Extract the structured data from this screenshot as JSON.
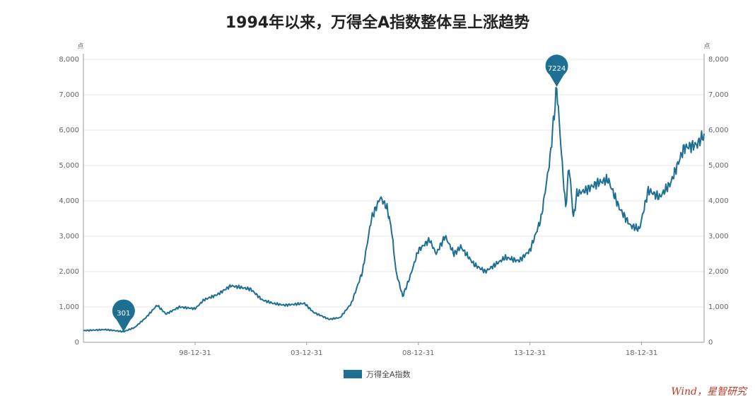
{
  "title": "1994年以来，万得全A指数整体呈上涨趋势",
  "source_note": "Wind，星智研究",
  "colors": {
    "line": "#1f6f93",
    "marker": "#1f6f93"
  },
  "chart_data": {
    "type": "line",
    "title": "1994年以来，万得全A指数整体呈上涨趋势",
    "y_unit": "点",
    "ylim": [
      0,
      8000
    ],
    "y_ticks": [
      0,
      1000,
      2000,
      3000,
      4000,
      5000,
      6000,
      7000,
      8000
    ],
    "y_tick_labels": [
      "0",
      "1,000",
      "2,000",
      "3,000",
      "4,000",
      "5,000",
      "6,000",
      "7,000",
      "8,000"
    ],
    "x_ticks": [
      "98-12-31",
      "03-12-31",
      "08-12-31",
      "13-12-31",
      "18-12-31"
    ],
    "grid": true,
    "legend_position": "bottom",
    "series": [
      {
        "name": "万得全A指数",
        "x": [
          1994.0,
          1995.0,
          1995.8,
          1996.3,
          1996.8,
          1997.3,
          1997.7,
          1998.3,
          1999.0,
          1999.4,
          2000.0,
          2000.6,
          2001.5,
          2002.0,
          2002.5,
          2003.0,
          2003.9,
          2004.3,
          2005.0,
          2005.5,
          2006.0,
          2006.5,
          2006.9,
          2007.3,
          2007.6,
          2007.8,
          2008.0,
          2008.3,
          2008.6,
          2009.0,
          2009.5,
          2009.8,
          2010.2,
          2010.6,
          2010.9,
          2011.5,
          2012.0,
          2012.9,
          2013.5,
          2014.0,
          2014.5,
          2014.9,
          2015.2,
          2015.45,
          2015.6,
          2015.75,
          2015.95,
          2016.1,
          2016.5,
          2017.0,
          2017.5,
          2018.0,
          2018.5,
          2018.9,
          2019.3,
          2019.8,
          2020.3,
          2020.9,
          2021.5,
          2021.8
        ],
        "values": [
          330,
          360,
          301,
          420,
          700,
          1050,
          800,
          1000,
          950,
          1200,
          1350,
          1600,
          1500,
          1200,
          1100,
          1050,
          1100,
          850,
          650,
          700,
          1100,
          2000,
          3500,
          4100,
          3800,
          3200,
          2000,
          1300,
          1800,
          2600,
          2900,
          2500,
          3000,
          2500,
          2700,
          2200,
          2000,
          2400,
          2300,
          2600,
          3500,
          5200,
          7224,
          5000,
          3800,
          5000,
          3500,
          4200,
          4300,
          4500,
          4600,
          3800,
          3300,
          3200,
          4300,
          4100,
          4500,
          5500,
          5600,
          5900
        ]
      }
    ],
    "annotations": [
      {
        "label": "301",
        "x": 1995.8,
        "y": 301
      },
      {
        "label": "7224",
        "x": 2015.2,
        "y": 7224
      }
    ]
  }
}
